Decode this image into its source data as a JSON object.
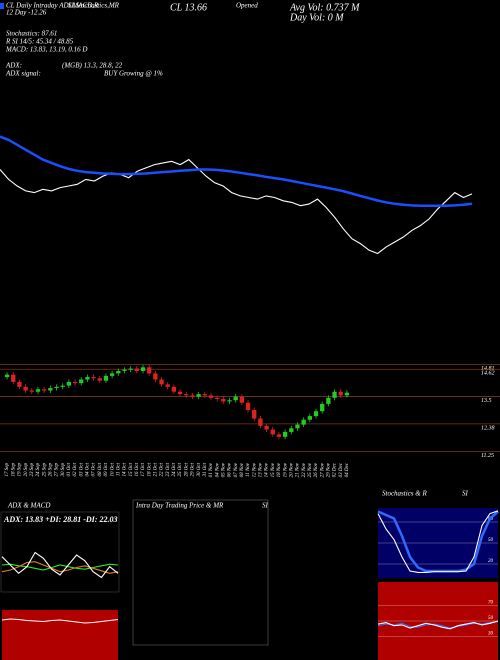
{
  "chart_data": [
    {
      "type": "line",
      "annotations": [
        "CL Daily Intraday ADLMACD,R",
        "SI,Stochastics,MR",
        "CL 13.66",
        "Opened",
        "Avg Vol: 0.737 M",
        "12 Day -12.26",
        "Day Vol: 0  M",
        "Stochastics: 87.61",
        "R   SI 14/5: 45.34 / 48.85",
        "MACD: 13.83, 13.19, 0.16  D",
        "ADX:",
        "(MGB) 13.3, 28.8, 22",
        "ADX signal:",
        "BUY Growing @ 1%"
      ],
      "ylim": [
        11.5,
        15.6
      ],
      "series": [
        {
          "color": "#ffffff",
          "values": [
            14.4,
            14.1,
            13.9,
            13.75,
            13.7,
            13.8,
            13.75,
            13.85,
            13.9,
            13.95,
            14.1,
            14.05,
            14.2,
            14.3,
            14.25,
            14.15,
            14.35,
            14.45,
            14.55,
            14.6,
            14.65,
            14.55,
            14.7,
            14.45,
            14.2,
            14.0,
            13.9,
            13.7,
            13.6,
            13.55,
            13.5,
            13.6,
            13.55,
            13.45,
            13.4,
            13.3,
            13.35,
            13.5,
            13.25,
            12.95,
            12.6,
            12.3,
            12.15,
            11.95,
            11.85,
            12.05,
            12.2,
            12.35,
            12.55,
            12.7,
            12.9,
            13.2,
            13.45,
            13.7,
            13.55,
            13.66
          ]
        },
        {
          "color": "#1a4fff",
          "values": [
            15.4,
            15.3,
            15.15,
            15.0,
            14.85,
            14.7,
            14.6,
            14.5,
            14.42,
            14.36,
            14.32,
            14.3,
            14.28,
            14.27,
            14.26,
            14.26,
            14.27,
            14.28,
            14.3,
            14.32,
            14.34,
            14.36,
            14.38,
            14.4,
            14.4,
            14.39,
            14.37,
            14.34,
            14.3,
            14.26,
            14.22,
            14.18,
            14.14,
            14.1,
            14.05,
            14.0,
            13.95,
            13.9,
            13.85,
            13.8,
            13.74,
            13.67,
            13.6,
            13.53,
            13.46,
            13.4,
            13.36,
            13.33,
            13.31,
            13.3,
            13.3,
            13.3,
            13.3,
            13.31,
            13.33,
            13.36
          ]
        }
      ]
    },
    {
      "type": "candlestick",
      "categories": [
        "17 Sep",
        "18 Sep",
        "19 Sep",
        "20 Sep",
        "23 Sep",
        "24 Sep",
        "25 Sep",
        "26 Sep",
        "27 Sep",
        "30 Sep",
        "01 Oct",
        "02 Oct",
        "03 Oct",
        "04 Oct",
        "07 Oct",
        "08 Oct",
        "09 Oct",
        "10 Oct",
        "11 Oct",
        "14 Oct",
        "15 Oct",
        "16 Oct",
        "17 Oct",
        "18 Oct",
        "21 Oct",
        "22 Oct",
        "23 Oct",
        "24 Oct",
        "25 Oct",
        "28 Oct",
        "29 Oct",
        "30 Oct",
        "31 Oct",
        "01 Nov",
        "04 Nov",
        "05 Nov",
        "06 Nov",
        "07 Nov",
        "08 Nov",
        "11 Nov",
        "12 Nov",
        "13 Nov",
        "14 Nov",
        "15 Nov",
        "18 Nov",
        "19 Nov",
        "20 Nov",
        "21 Nov",
        "22 Nov",
        "25 Nov",
        "26 Nov",
        "27 Nov",
        "29 Nov",
        "02 Dec",
        "03 Dec",
        "04 Dec"
      ],
      "open": [
        14.3,
        14.4,
        14.1,
        13.9,
        13.75,
        13.7,
        13.8,
        13.75,
        13.85,
        13.9,
        13.95,
        14.1,
        14.05,
        14.2,
        14.3,
        14.25,
        14.15,
        14.35,
        14.45,
        14.55,
        14.6,
        14.65,
        14.55,
        14.7,
        14.45,
        14.2,
        14.0,
        13.9,
        13.7,
        13.6,
        13.55,
        13.5,
        13.6,
        13.55,
        13.45,
        13.4,
        13.3,
        13.35,
        13.5,
        13.25,
        12.95,
        12.6,
        12.3,
        12.15,
        11.95,
        11.85,
        12.05,
        12.2,
        12.35,
        12.55,
        12.7,
        12.9,
        13.2,
        13.45,
        13.7,
        13.55
      ],
      "high": [
        14.5,
        14.5,
        14.2,
        14.0,
        13.85,
        13.9,
        13.9,
        13.95,
        14.0,
        14.05,
        14.2,
        14.2,
        14.3,
        14.4,
        14.4,
        14.35,
        14.45,
        14.55,
        14.65,
        14.7,
        14.75,
        14.75,
        14.8,
        14.8,
        14.55,
        14.3,
        14.1,
        14.0,
        13.8,
        13.7,
        13.65,
        13.7,
        13.7,
        13.65,
        13.55,
        13.5,
        13.45,
        13.6,
        13.6,
        13.35,
        13.05,
        12.7,
        12.4,
        12.25,
        12.05,
        12.15,
        12.3,
        12.45,
        12.65,
        12.8,
        13.0,
        13.3,
        13.55,
        13.8,
        13.8,
        13.76
      ],
      "low": [
        14.2,
        14.0,
        13.8,
        13.65,
        13.6,
        13.6,
        13.65,
        13.65,
        13.75,
        13.8,
        13.85,
        13.95,
        13.95,
        14.1,
        14.15,
        14.05,
        14.05,
        14.25,
        14.35,
        14.45,
        14.5,
        14.45,
        14.45,
        14.35,
        14.1,
        13.9,
        13.8,
        13.6,
        13.5,
        13.45,
        13.4,
        13.4,
        13.45,
        13.35,
        13.3,
        13.2,
        13.2,
        13.25,
        13.15,
        12.85,
        12.5,
        12.2,
        12.05,
        11.85,
        11.75,
        11.75,
        11.95,
        12.1,
        12.25,
        12.45,
        12.6,
        12.8,
        13.1,
        13.35,
        13.45,
        13.45
      ],
      "close": [
        14.4,
        14.1,
        13.9,
        13.75,
        13.7,
        13.8,
        13.75,
        13.85,
        13.9,
        13.95,
        14.1,
        14.05,
        14.2,
        14.3,
        14.25,
        14.15,
        14.35,
        14.45,
        14.55,
        14.6,
        14.65,
        14.55,
        14.7,
        14.45,
        14.2,
        14.0,
        13.9,
        13.7,
        13.6,
        13.55,
        13.5,
        13.6,
        13.55,
        13.45,
        13.4,
        13.3,
        13.35,
        13.5,
        13.25,
        12.95,
        12.6,
        12.3,
        12.15,
        11.95,
        11.85,
        12.05,
        12.2,
        12.35,
        12.55,
        12.7,
        12.9,
        13.2,
        13.45,
        13.7,
        13.55,
        13.66
      ],
      "ylim": [
        10.9,
        15.0
      ],
      "yticks": [
        14.81,
        14.62,
        13.5,
        12.38,
        11.25
      ],
      "up_color": "#22cc22",
      "down_color": "#dd2222",
      "grid_color": "#7a3a12"
    },
    {
      "type": "line",
      "title": "ADX  & MACD",
      "annotation": "ADX: 13.83 +DI: 28.81 -DI: 22.03",
      "ylim": [
        0,
        60
      ],
      "series": [
        {
          "color": "#22ee22",
          "values": [
            30,
            31,
            29,
            28,
            26,
            24,
            27,
            30,
            28,
            26,
            25,
            27,
            29,
            31,
            30
          ]
        },
        {
          "color": "#e08020",
          "values": [
            22,
            24,
            28,
            33,
            34,
            30,
            26,
            22,
            24,
            27,
            29,
            26,
            23,
            20,
            22
          ]
        },
        {
          "color": "#ffffff",
          "values": [
            40,
            30,
            20,
            28,
            45,
            38,
            25,
            18,
            30,
            42,
            35,
            22,
            15,
            28,
            20
          ]
        }
      ]
    },
    {
      "type": "line",
      "ylim": [
        0,
        10
      ],
      "background": "#b00000",
      "series": [
        {
          "color": "#ffffff",
          "values": [
            8,
            8.2,
            8.1,
            7.9,
            7.8,
            7.7,
            7.9,
            8,
            7.8,
            7.6,
            7.4,
            7.5,
            7.7,
            7.9,
            8.1
          ]
        }
      ]
    },
    {
      "type": "line",
      "title": "Intra Day Trading Price  & MR",
      "subtitle": "SI",
      "series": []
    },
    {
      "type": "line",
      "title": "Stochastics & R",
      "subtitle": "SI",
      "ylim": [
        0,
        100
      ],
      "yticks": [
        80,
        50,
        20
      ],
      "background": "#000066",
      "series": [
        {
          "color": "#2f6bff",
          "values": [
            95,
            90,
            85,
            60,
            30,
            15,
            10,
            10,
            10,
            10,
            10,
            12,
            20,
            60,
            85,
            95
          ]
        },
        {
          "color": "#ffffff",
          "values": [
            92,
            70,
            55,
            30,
            10,
            8,
            8,
            9,
            9,
            9,
            9,
            10,
            30,
            75,
            92,
            96
          ]
        }
      ]
    },
    {
      "type": "line",
      "ylim": [
        0,
        100
      ],
      "yticks": [
        70,
        50,
        30
      ],
      "background": "#b00000",
      "series": [
        {
          "color": "#2f6bff",
          "values": [
            44,
            46,
            45,
            47,
            43,
            42,
            45,
            46,
            44,
            41,
            43,
            45,
            47,
            46,
            48,
            49
          ]
        },
        {
          "color": "#ffffff",
          "values": [
            46,
            48,
            44,
            45,
            41,
            44,
            47,
            45,
            42,
            40,
            44,
            46,
            48,
            45,
            47,
            50
          ]
        }
      ]
    }
  ]
}
